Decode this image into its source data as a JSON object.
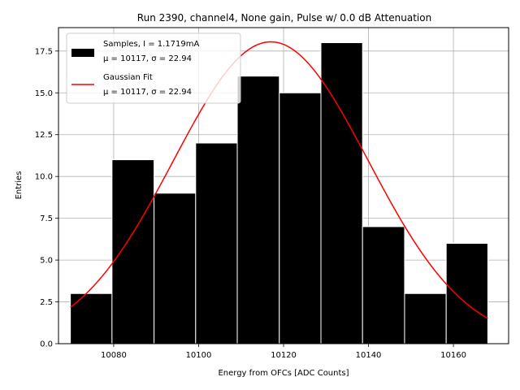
{
  "chart_data": {
    "type": "histogram",
    "title": "Run 2390, channel4, None gain, Pulse w/ 0.0 dB Attenuation",
    "xlabel": "Energy from OFCs [ADC Counts]",
    "ylabel": "Entries",
    "xlim": [
      10067,
      10173
    ],
    "ylim": [
      0,
      18.9
    ],
    "xticks": [
      10080,
      10100,
      10120,
      10140,
      10160
    ],
    "yticks": [
      0.0,
      2.5,
      5.0,
      7.5,
      10.0,
      12.5,
      15.0,
      17.5
    ],
    "grid": true,
    "bins": [
      {
        "left": 10069.8,
        "right": 10079.6,
        "count": 3
      },
      {
        "left": 10079.6,
        "right": 10089.5,
        "count": 11
      },
      {
        "left": 10089.5,
        "right": 10099.3,
        "count": 9
      },
      {
        "left": 10099.3,
        "right": 10109.1,
        "count": 12
      },
      {
        "left": 10109.1,
        "right": 10119.0,
        "count": 16
      },
      {
        "left": 10119.0,
        "right": 10128.8,
        "count": 15
      },
      {
        "left": 10128.8,
        "right": 10138.6,
        "count": 18
      },
      {
        "left": 10138.6,
        "right": 10148.5,
        "count": 7
      },
      {
        "left": 10148.5,
        "right": 10158.3,
        "count": 3
      },
      {
        "left": 10158.3,
        "right": 10168.1,
        "count": 6
      }
    ],
    "fit": {
      "name": "Gaussian Fit",
      "mu": 10117,
      "sigma": 22.94,
      "amplitude": 18.05,
      "x_range": [
        10069.8,
        10168.1
      ]
    },
    "legend": {
      "placement": "top-left",
      "entries": [
        {
          "line1": "Samples, I = 1.1719mA",
          "line2": "μ = 10117, σ = 22.94",
          "color": "#000000",
          "kind": "patch"
        },
        {
          "line1": "Gaussian Fit",
          "line2": "μ = 10117, σ = 22.94",
          "color": "#ff0000",
          "kind": "line"
        }
      ]
    },
    "colors": {
      "bar": "#000000",
      "bar_edge": "#ffffff",
      "fit": "#ff0000",
      "grid": "#b0b0b0"
    }
  }
}
